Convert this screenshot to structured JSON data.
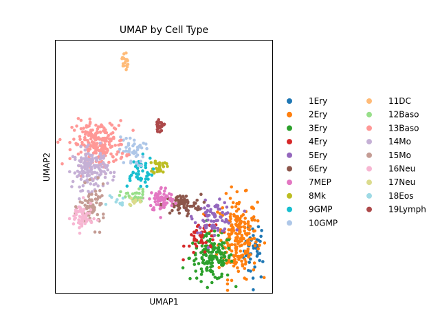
{
  "chart_data": {
    "type": "scatter",
    "title": "UMAP by Cell Type",
    "xlabel": "UMAP1",
    "ylabel": "UMAP2",
    "xticks": false,
    "yticks": false,
    "grid": false,
    "legend_position": "right, outside plot, two columns",
    "xlim": [
      0,
      10
    ],
    "ylim": [
      0,
      10
    ],
    "series": [
      {
        "name": "1Ery",
        "color": "#1f77b4",
        "cx": 9.2,
        "cy": 1.7,
        "sx": 0.25,
        "sy": 0.6,
        "n": 40
      },
      {
        "name": "2Ery",
        "color": "#ff7f0e",
        "cx": 8.4,
        "cy": 2.2,
        "sx": 0.45,
        "sy": 0.8,
        "n": 230
      },
      {
        "name": "3Ery",
        "color": "#2ca02c",
        "cx": 7.2,
        "cy": 1.4,
        "sx": 0.5,
        "sy": 0.45,
        "n": 150
      },
      {
        "name": "4Ery",
        "color": "#d62728",
        "cx": 6.8,
        "cy": 2.2,
        "sx": 0.4,
        "sy": 0.35,
        "n": 45
      },
      {
        "name": "5Ery",
        "color": "#9467bd",
        "cx": 7.3,
        "cy": 3.0,
        "sx": 0.45,
        "sy": 0.3,
        "n": 85
      },
      {
        "name": "6Ery",
        "color": "#8c564b",
        "cx": 5.8,
        "cy": 3.5,
        "sx": 0.45,
        "sy": 0.2,
        "n": 70
      },
      {
        "name": "7MEP",
        "color": "#e377c2",
        "cx": 4.9,
        "cy": 3.7,
        "sx": 0.3,
        "sy": 0.25,
        "n": 70
      },
      {
        "name": "8Mk",
        "color": "#bcbd22",
        "cx": 4.8,
        "cy": 5.0,
        "sx": 0.15,
        "sy": 0.15,
        "n": 30
      },
      {
        "name": "9GMP",
        "color": "#17becf",
        "cx": 3.8,
        "cy": 4.8,
        "sx": 0.35,
        "sy": 0.3,
        "n": 45
      },
      {
        "name": "10GMP",
        "color": "#aec7e8",
        "cx": 3.5,
        "cy": 5.6,
        "sx": 0.3,
        "sy": 0.3,
        "n": 45
      },
      {
        "name": "11DC",
        "color": "#ffbb78",
        "cx": 3.2,
        "cy": 9.2,
        "sx": 0.07,
        "sy": 0.22,
        "n": 18
      },
      {
        "name": "12Baso",
        "color": "#98df8a",
        "cx": 3.6,
        "cy": 3.8,
        "sx": 0.3,
        "sy": 0.15,
        "n": 30
      },
      {
        "name": "13Baso",
        "color": "#ff9896",
        "cx": 2.0,
        "cy": 5.9,
        "sx": 0.6,
        "sy": 0.45,
        "n": 220
      },
      {
        "name": "14Mo",
        "color": "#c5b0d5",
        "cx": 1.6,
        "cy": 4.9,
        "sx": 0.4,
        "sy": 0.4,
        "n": 150
      },
      {
        "name": "15Mo",
        "color": "#c49c94",
        "cx": 1.7,
        "cy": 3.4,
        "sx": 0.3,
        "sy": 0.4,
        "n": 70
      },
      {
        "name": "16Neu",
        "color": "#f7b6d2",
        "cx": 1.2,
        "cy": 3.0,
        "sx": 0.25,
        "sy": 0.3,
        "n": 60
      },
      {
        "name": "17Neu",
        "color": "#dbdb8d",
        "cx": 3.6,
        "cy": 3.6,
        "sx": 0.15,
        "sy": 0.1,
        "n": 10
      },
      {
        "name": "18Eos",
        "color": "#9edae5",
        "cx": 2.8,
        "cy": 3.6,
        "sx": 0.2,
        "sy": 0.1,
        "n": 10
      },
      {
        "name": "19Lymph",
        "color": "#ad494a",
        "cx": 4.8,
        "cy": 6.6,
        "sx": 0.1,
        "sy": 0.1,
        "n": 25
      }
    ]
  }
}
